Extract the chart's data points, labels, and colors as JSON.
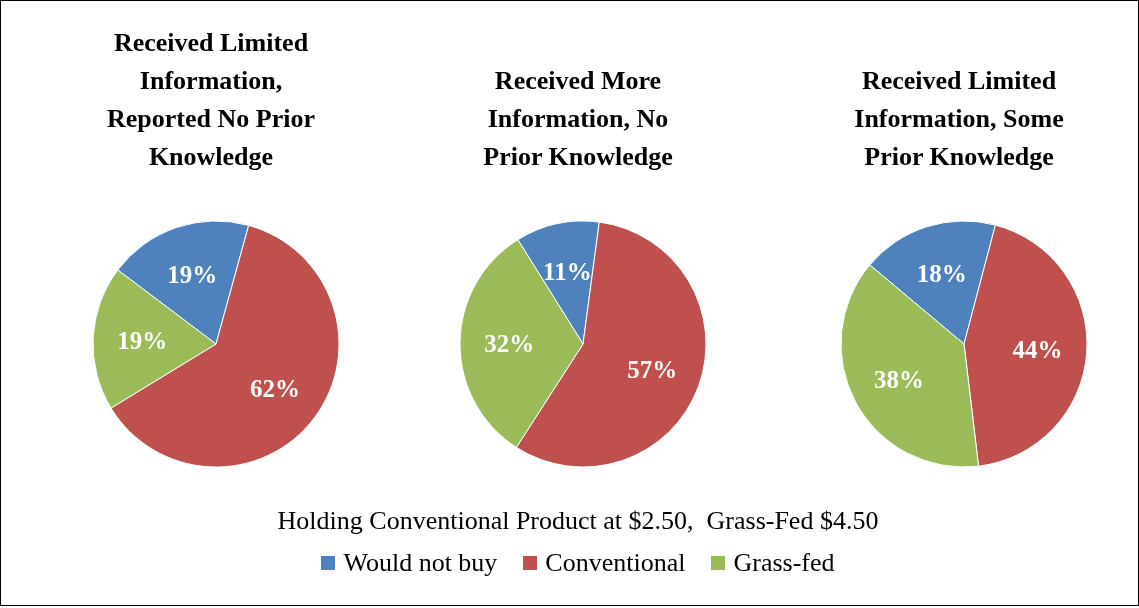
{
  "chart_data": [
    {
      "type": "pie",
      "title": "Received Limited Information, Reported No Prior Knowledge",
      "categories": [
        null,
        null,
        null
      ],
      "values": [
        19,
        62,
        19
      ],
      "colors": [
        "#4f81bd",
        "#c0504d",
        "#9bbb59"
      ],
      "value_labels": [
        "19%",
        "62%",
        "19%"
      ]
    },
    {
      "type": "pie",
      "title": "Received More Information, No Prior Knowledge",
      "categories": [
        "Would not buy",
        "Conventional",
        "Grass-fed"
      ],
      "values": [
        11,
        57,
        32
      ],
      "colors": [
        "#4f81bd",
        "#c0504d",
        "#9bbb59"
      ],
      "value_labels": [
        "11%",
        "57%",
        "32%"
      ],
      "legend": "bottom",
      "annotations": [
        "Holding Conventional Product at $2.50,  Grass-Fed $4.50"
      ]
    },
    {
      "type": "pie",
      "title": "Received Limited Information, Some Prior Knowledge",
      "categories": [
        null,
        null,
        null
      ],
      "values": [
        18,
        44,
        38
      ],
      "colors": [
        "#4f81bd",
        "#c0504d",
        "#9bbb59"
      ],
      "value_labels": [
        "18%",
        "44%",
        "38%"
      ]
    }
  ]
}
